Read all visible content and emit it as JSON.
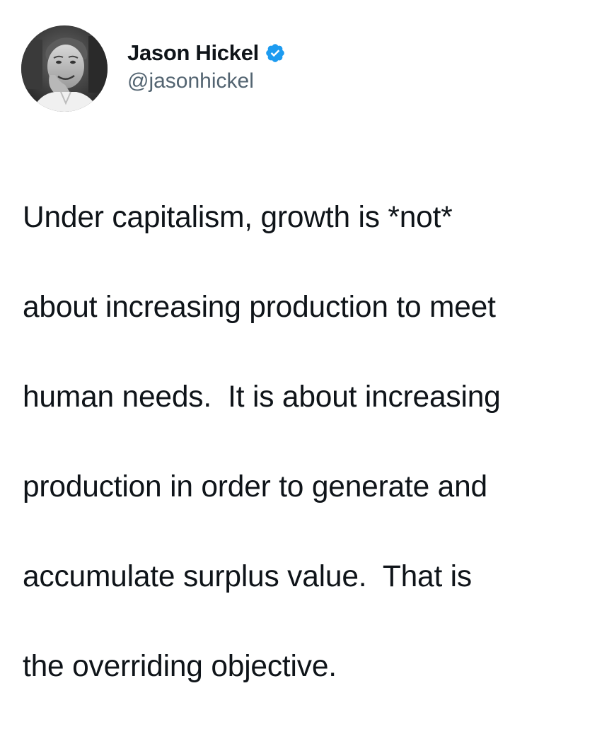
{
  "author": {
    "display_name": "Jason Hickel",
    "handle": "@jasonhickel",
    "verified": true,
    "avatar_icon": "profile-photo",
    "verified_icon": "verified-badge-icon",
    "verified_color": "#1d9bf0"
  },
  "tweet": {
    "lines": [
      "Under capitalism, growth is *not*",
      "about increasing production to meet",
      "human needs.  It is about increasing",
      "production in order to generate and",
      "accumulate surplus value.  That is",
      "the overriding objective."
    ]
  }
}
